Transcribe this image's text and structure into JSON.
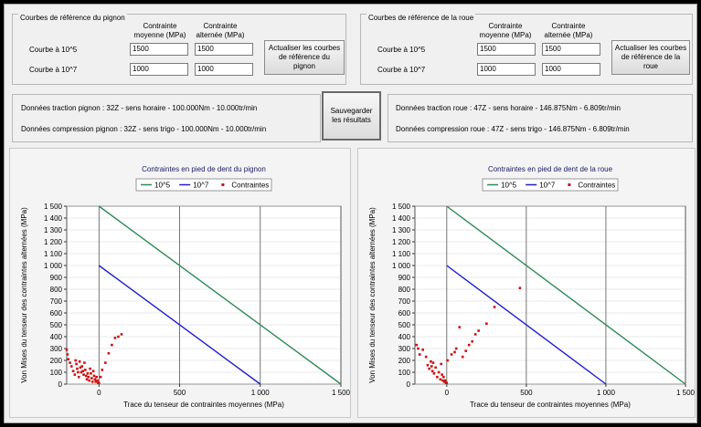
{
  "pinion_ref": {
    "title": "Courbes de référence du pignon",
    "col_mean": "Contrainte moyenne (MPa)",
    "col_alt": "Contrainte alternée (MPa)",
    "rows": [
      {
        "label": "Courbe à 10^5",
        "mean": "1500",
        "alt": "1500"
      },
      {
        "label": "Courbe à 10^7",
        "mean": "1000",
        "alt": "1000"
      }
    ],
    "update_button": "Actualiser les courbes de référence du pignon"
  },
  "wheel_ref": {
    "title": "Courbes de référence de la roue",
    "col_mean": "Contrainte moyenne (MPa)",
    "col_alt": "Contrainte alternée (MPa)",
    "rows": [
      {
        "label": "Courbe à 10^5",
        "mean": "1500",
        "alt": "1500"
      },
      {
        "label": "Courbe à 10^7",
        "mean": "1000",
        "alt": "1000"
      }
    ],
    "update_button": "Actualiser les courbes de référence de la roue"
  },
  "pinion_info": {
    "traction": "Données traction pignon : 32Z - sens horaire - 100.000Nm - 10.000tr/min",
    "compression": "Données compression pignon : 32Z - sens trigo - 100.000Nm - 10.000tr/min"
  },
  "wheel_info": {
    "traction": "Données traction roue : 47Z - sens horaire - 146.875Nm - 6.809tr/min",
    "compression": "Données compression roue : 47Z - sens trigo - 146.875Nm - 6.809tr/min"
  },
  "save_button": "Sauvegarder les résultats",
  "colors": {
    "curve_1e5": "#2e8b57",
    "curve_1e7": "#1f1fcc",
    "points": "#cc1111"
  },
  "chart_data": [
    {
      "type": "scatter",
      "title": "Contraintes en pied de dent du pignon",
      "xlabel": "Trace du tenseur de contraintes moyennes (MPa)",
      "ylabel": "Von Mises du tenseur des contraintes alternées (MPa)",
      "xlim": [
        -200,
        1500
      ],
      "ylim": [
        0,
        1500
      ],
      "xticks": [
        "0",
        "500",
        "1 000",
        "1 500"
      ],
      "yticks": [
        "0",
        "100",
        "200",
        "300",
        "400",
        "500",
        "600",
        "700",
        "800",
        "900",
        "1 000",
        "1 100",
        "1 200",
        "1 300",
        "1 400",
        "1 500"
      ],
      "grid": true,
      "legend": "top",
      "series": [
        {
          "name": "10^5",
          "kind": "line",
          "x": [
            0,
            1500
          ],
          "y": [
            1500,
            0
          ]
        },
        {
          "name": "10^7",
          "kind": "line",
          "x": [
            0,
            1000
          ],
          "y": [
            1000,
            0
          ]
        },
        {
          "name": "Contraintes",
          "kind": "points",
          "x": [
            -200,
            -195,
            -190,
            -180,
            -170,
            -160,
            -150,
            -145,
            -140,
            -135,
            -130,
            -125,
            -120,
            -115,
            -110,
            -105,
            -100,
            -95,
            -90,
            -85,
            -80,
            -75,
            -70,
            -65,
            -60,
            -55,
            -50,
            -45,
            -40,
            -35,
            -30,
            -25,
            -20,
            -15,
            -10,
            -5,
            0,
            10,
            20,
            40,
            60,
            80,
            100,
            120,
            140
          ],
          "y": [
            290,
            250,
            210,
            180,
            150,
            110,
            80,
            200,
            170,
            130,
            100,
            60,
            190,
            140,
            100,
            150,
            110,
            80,
            180,
            120,
            70,
            40,
            90,
            60,
            30,
            130,
            90,
            50,
            20,
            110,
            70,
            40,
            20,
            60,
            30,
            10,
            10,
            60,
            120,
            180,
            260,
            330,
            390,
            400,
            420
          ]
        }
      ]
    },
    {
      "type": "scatter",
      "title": "Contraintes en pied de dent de la roue",
      "xlabel": "Trace du tenseur de contraintes moyennes (MPa)",
      "ylabel": "Von Mises du tenseur des contraintes alternées (MPa)",
      "xlim": [
        -200,
        1500
      ],
      "ylim": [
        0,
        1500
      ],
      "xticks": [
        "0",
        "500",
        "1 000",
        "1 500"
      ],
      "yticks": [
        "0",
        "100",
        "200",
        "300",
        "400",
        "500",
        "600",
        "700",
        "800",
        "900",
        "1 000",
        "1 100",
        "1 200",
        "1 300",
        "1 400",
        "1 500"
      ],
      "grid": true,
      "legend": "top",
      "series": [
        {
          "name": "10^5",
          "kind": "line",
          "x": [
            0,
            1500
          ],
          "y": [
            1500,
            0
          ]
        },
        {
          "name": "10^7",
          "kind": "line",
          "x": [
            0,
            1000
          ],
          "y": [
            1000,
            0
          ]
        },
        {
          "name": "Contraintes",
          "kind": "points",
          "x": [
            -190,
            -180,
            -170,
            -150,
            -130,
            -120,
            -110,
            -100,
            -95,
            -90,
            -85,
            -80,
            -70,
            -60,
            -50,
            -40,
            -35,
            -30,
            -25,
            -20,
            -15,
            -10,
            -5,
            0,
            5,
            30,
            50,
            60,
            80,
            100,
            120,
            140,
            160,
            180,
            200,
            250,
            300,
            460
          ],
          "y": [
            330,
            300,
            250,
            290,
            230,
            160,
            130,
            190,
            150,
            110,
            180,
            90,
            140,
            60,
            100,
            40,
            170,
            80,
            30,
            60,
            20,
            30,
            10,
            10,
            200,
            250,
            270,
            300,
            480,
            230,
            280,
            330,
            360,
            420,
            450,
            510,
            650,
            810
          ]
        }
      ]
    }
  ]
}
